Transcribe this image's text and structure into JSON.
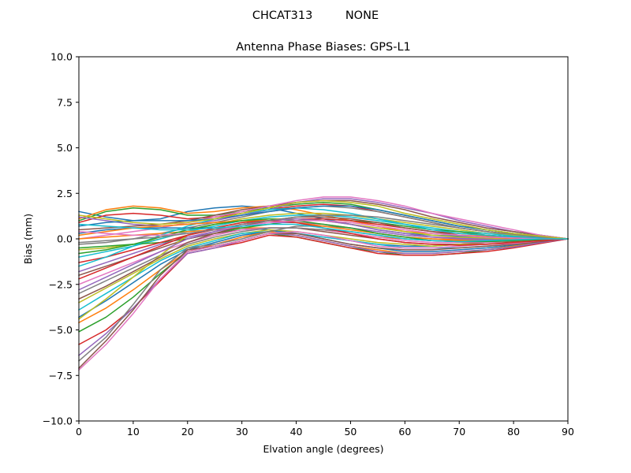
{
  "figure": {
    "suptitle": "CHCAT313         NONE"
  },
  "chart_data": {
    "type": "line",
    "title": "Antenna Phase Biases: GPS-L1",
    "xlabel": "Elvation angle (degrees)",
    "ylabel": "Bias (mm)",
    "xlim": [
      0,
      90
    ],
    "ylim": [
      -10,
      10
    ],
    "xticks": [
      0,
      10,
      20,
      30,
      40,
      50,
      60,
      70,
      80,
      90
    ],
    "yticks": [
      -10.0,
      -7.5,
      -5.0,
      -2.5,
      0.0,
      2.5,
      5.0,
      7.5,
      10.0
    ],
    "xtick_labels": [
      "0",
      "10",
      "20",
      "30",
      "40",
      "50",
      "60",
      "70",
      "80",
      "90"
    ],
    "ytick_labels": [
      "−10.0",
      "−7.5",
      "−5.0",
      "−2.5",
      "0.0",
      "2.5",
      "5.0",
      "7.5",
      "10.0"
    ],
    "grid": false,
    "legend": "none",
    "palette": [
      "#1f77b4",
      "#ff7f0e",
      "#2ca02c",
      "#d62728",
      "#9467bd",
      "#8c564b",
      "#e377c2",
      "#7f7f7f",
      "#bcbd22",
      "#17becf"
    ],
    "x": [
      0,
      5,
      10,
      15,
      20,
      25,
      30,
      35,
      40,
      45,
      50,
      55,
      60,
      65,
      70,
      75,
      80,
      85,
      90
    ],
    "series": [
      {
        "values": [
          1.5,
          1.2,
          1.0,
          1.1,
          1.5,
          1.7,
          1.8,
          1.7,
          1.4,
          1.1,
          0.8,
          0.5,
          0.3,
          0.2,
          0.15,
          0.1,
          0.05,
          0.02,
          0.0
        ]
      },
      {
        "values": [
          1.1,
          1.6,
          1.8,
          1.7,
          1.4,
          1.5,
          1.7,
          1.8,
          1.6,
          1.3,
          1.0,
          0.7,
          0.4,
          0.3,
          0.2,
          0.15,
          0.1,
          0.05,
          0.0
        ]
      },
      {
        "values": [
          1.0,
          1.5,
          1.7,
          1.6,
          1.3,
          1.3,
          1.5,
          1.7,
          1.9,
          2.0,
          1.9,
          1.6,
          1.3,
          1.0,
          0.7,
          0.5,
          0.3,
          0.15,
          0.0
        ]
      },
      {
        "values": [
          0.9,
          1.3,
          1.4,
          1.3,
          1.1,
          1.2,
          1.4,
          1.6,
          1.8,
          1.9,
          1.8,
          1.5,
          1.2,
          0.9,
          0.6,
          0.4,
          0.25,
          0.1,
          0.0
        ]
      },
      {
        "values": [
          1.2,
          1.0,
          0.8,
          0.7,
          0.8,
          1.0,
          1.3,
          1.6,
          2.0,
          2.2,
          2.2,
          2.0,
          1.7,
          1.4,
          1.0,
          0.7,
          0.4,
          0.2,
          0.0
        ]
      },
      {
        "values": [
          0.5,
          0.6,
          0.7,
          0.8,
          1.0,
          1.3,
          1.6,
          1.8,
          2.0,
          2.1,
          2.1,
          1.9,
          1.6,
          1.2,
          0.9,
          0.6,
          0.4,
          0.2,
          0.0
        ]
      },
      {
        "values": [
          0.0,
          0.2,
          0.4,
          0.6,
          0.9,
          1.2,
          1.5,
          1.8,
          2.1,
          2.3,
          2.3,
          2.1,
          1.8,
          1.4,
          1.1,
          0.8,
          0.5,
          0.2,
          0.0
        ]
      },
      {
        "values": [
          -0.3,
          -0.2,
          0.0,
          0.3,
          0.6,
          0.9,
          1.2,
          1.5,
          1.7,
          1.8,
          1.7,
          1.5,
          1.2,
          0.9,
          0.6,
          0.4,
          0.2,
          0.1,
          0.0
        ]
      },
      {
        "values": [
          -0.6,
          -0.5,
          -0.3,
          0.0,
          0.4,
          0.8,
          1.1,
          1.3,
          1.4,
          1.4,
          1.3,
          1.1,
          0.9,
          0.7,
          0.5,
          0.3,
          0.2,
          0.1,
          0.0
        ]
      },
      {
        "values": [
          -1.0,
          -0.7,
          -0.4,
          0.0,
          0.4,
          0.7,
          1.0,
          1.2,
          1.3,
          1.3,
          1.2,
          1.0,
          0.8,
          0.6,
          0.4,
          0.3,
          0.15,
          0.05,
          0.0
        ]
      },
      {
        "values": [
          0.3,
          0.5,
          0.6,
          0.6,
          0.6,
          0.6,
          0.6,
          0.5,
          0.3,
          0.1,
          -0.1,
          -0.3,
          -0.4,
          -0.4,
          -0.3,
          -0.2,
          -0.1,
          -0.05,
          0.0
        ]
      },
      {
        "values": [
          0.0,
          0.1,
          0.2,
          0.3,
          0.4,
          0.5,
          0.6,
          0.6,
          0.6,
          0.5,
          0.3,
          0.1,
          0.0,
          -0.1,
          -0.1,
          -0.1,
          -0.05,
          0.0,
          0.0
        ]
      },
      {
        "values": [
          -0.5,
          -0.4,
          -0.3,
          -0.2,
          0.0,
          0.3,
          0.6,
          0.8,
          1.0,
          1.1,
          1.0,
          0.9,
          0.7,
          0.5,
          0.4,
          0.2,
          0.1,
          0.05,
          0.0
        ]
      },
      {
        "values": [
          -1.3,
          -1.0,
          -0.6,
          -0.2,
          0.2,
          0.5,
          0.8,
          1.0,
          1.1,
          1.1,
          1.0,
          0.8,
          0.6,
          0.4,
          0.3,
          0.2,
          0.1,
          0.05,
          0.0
        ]
      },
      {
        "values": [
          -1.8,
          -1.3,
          -0.8,
          -0.3,
          0.1,
          0.4,
          0.7,
          0.9,
          0.9,
          0.8,
          0.6,
          0.4,
          0.2,
          0.1,
          0.05,
          0.0,
          0.0,
          0.0,
          0.0
        ]
      },
      {
        "values": [
          -2.0,
          -1.5,
          -1.0,
          -0.5,
          0.0,
          0.3,
          0.5,
          0.6,
          0.6,
          0.4,
          0.2,
          0.0,
          -0.2,
          -0.3,
          -0.3,
          -0.2,
          -0.15,
          -0.05,
          0.0
        ]
      },
      {
        "values": [
          -2.5,
          -1.9,
          -1.3,
          -0.7,
          -0.2,
          0.2,
          0.5,
          0.6,
          0.6,
          0.5,
          0.3,
          0.1,
          -0.1,
          -0.2,
          -0.2,
          -0.2,
          -0.1,
          -0.05,
          0.0
        ]
      },
      {
        "values": [
          -3.0,
          -2.3,
          -1.6,
          -0.9,
          -0.3,
          0.1,
          0.4,
          0.6,
          0.6,
          0.5,
          0.4,
          0.2,
          0.0,
          -0.1,
          -0.15,
          -0.1,
          -0.1,
          -0.05,
          0.0
        ]
      },
      {
        "values": [
          -3.5,
          -2.7,
          -1.9,
          -1.1,
          -0.4,
          0.0,
          0.3,
          0.5,
          0.4,
          0.2,
          0.0,
          -0.2,
          -0.3,
          -0.4,
          -0.3,
          -0.3,
          -0.2,
          -0.1,
          0.0
        ]
      },
      {
        "values": [
          -3.9,
          -3.0,
          -2.1,
          -1.2,
          -0.5,
          -0.1,
          0.3,
          0.4,
          0.3,
          0.1,
          -0.1,
          -0.3,
          -0.5,
          -0.5,
          -0.5,
          -0.4,
          -0.3,
          -0.15,
          0.0
        ]
      },
      {
        "values": [
          -4.3,
          -3.4,
          -2.4,
          -1.4,
          -0.6,
          -0.2,
          0.2,
          0.4,
          0.3,
          0.0,
          -0.3,
          -0.5,
          -0.7,
          -0.7,
          -0.6,
          -0.5,
          -0.35,
          -0.2,
          0.0
        ]
      },
      {
        "values": [
          -4.6,
          -3.8,
          -2.8,
          -1.7,
          -0.7,
          -0.3,
          0.1,
          0.4,
          0.2,
          -0.1,
          -0.4,
          -0.6,
          -0.8,
          -0.8,
          -0.7,
          -0.6,
          -0.4,
          -0.2,
          0.0
        ]
      },
      {
        "values": [
          -5.1,
          -4.3,
          -3.2,
          -1.9,
          -0.7,
          -0.4,
          -0.1,
          0.3,
          0.1,
          -0.2,
          -0.5,
          -0.7,
          -0.9,
          -0.9,
          -0.8,
          -0.6,
          -0.45,
          -0.2,
          0.0
        ]
      },
      {
        "values": [
          -5.8,
          -5.0,
          -3.8,
          -2.3,
          -0.8,
          -0.5,
          -0.2,
          0.2,
          0.1,
          -0.2,
          -0.5,
          -0.8,
          -0.9,
          -0.9,
          -0.8,
          -0.7,
          -0.5,
          -0.25,
          0.0
        ]
      },
      {
        "values": [
          -6.4,
          -5.2,
          -3.8,
          -2.2,
          -0.8,
          -0.5,
          -0.1,
          0.3,
          0.2,
          -0.1,
          -0.4,
          -0.7,
          -0.8,
          -0.8,
          -0.7,
          -0.6,
          -0.45,
          -0.2,
          0.0
        ]
      },
      {
        "values": [
          -7.1,
          -5.6,
          -3.9,
          -2.0,
          -0.6,
          -0.4,
          -0.1,
          0.3,
          0.3,
          0.0,
          -0.3,
          -0.5,
          -0.6,
          -0.6,
          -0.5,
          -0.4,
          -0.3,
          -0.15,
          0.0
        ]
      },
      {
        "values": [
          -7.2,
          -5.8,
          -4.1,
          -2.2,
          -0.7,
          -0.4,
          -0.1,
          0.3,
          0.4,
          0.2,
          -0.1,
          -0.4,
          -0.5,
          -0.5,
          -0.4,
          -0.3,
          -0.25,
          -0.1,
          0.0
        ]
      },
      {
        "values": [
          -6.7,
          -5.4,
          -3.6,
          -1.7,
          -0.5,
          -0.3,
          0.0,
          0.4,
          0.7,
          0.7,
          0.6,
          0.3,
          0.1,
          0.0,
          -0.05,
          -0.05,
          0.0,
          0.0,
          0.0
        ]
      },
      {
        "values": [
          -4.4,
          -3.3,
          -2.1,
          -0.9,
          0.2,
          0.6,
          0.9,
          1.1,
          1.1,
          1.0,
          0.8,
          0.6,
          0.4,
          0.2,
          0.1,
          0.05,
          0.0,
          0.0,
          0.0
        ]
      },
      {
        "values": [
          -1.5,
          -1.0,
          -0.4,
          0.2,
          0.7,
          1.1,
          1.4,
          1.6,
          1.7,
          1.6,
          1.4,
          1.1,
          0.8,
          0.5,
          0.3,
          0.2,
          0.1,
          0.05,
          0.0
        ]
      },
      {
        "values": [
          0.7,
          0.9,
          1.0,
          1.0,
          1.0,
          1.1,
          1.3,
          1.5,
          1.7,
          1.8,
          1.8,
          1.6,
          1.3,
          1.0,
          0.7,
          0.5,
          0.3,
          0.15,
          0.0
        ]
      },
      {
        "values": [
          0.2,
          0.4,
          0.6,
          0.7,
          0.8,
          0.9,
          1.0,
          1.0,
          0.9,
          0.7,
          0.5,
          0.3,
          0.1,
          0.0,
          -0.05,
          -0.05,
          0.0,
          0.0,
          0.0
        ]
      },
      {
        "values": [
          -0.8,
          -0.6,
          -0.3,
          0.1,
          0.5,
          0.8,
          1.0,
          1.1,
          1.0,
          0.8,
          0.6,
          0.3,
          0.1,
          -0.1,
          -0.15,
          -0.15,
          -0.1,
          -0.05,
          0.0
        ]
      },
      {
        "values": [
          -2.2,
          -1.6,
          -1.0,
          -0.4,
          0.2,
          0.6,
          0.9,
          1.0,
          0.9,
          0.6,
          0.3,
          0.0,
          -0.2,
          -0.3,
          -0.35,
          -0.3,
          -0.2,
          -0.1,
          0.0
        ]
      },
      {
        "values": [
          -2.8,
          -2.1,
          -1.4,
          -0.7,
          0.0,
          0.4,
          0.8,
          1.0,
          1.1,
          1.0,
          0.8,
          0.5,
          0.3,
          0.1,
          0.0,
          -0.05,
          -0.05,
          0.0,
          0.0
        ]
      },
      {
        "values": [
          -3.3,
          -2.6,
          -1.8,
          -1.0,
          -0.2,
          0.3,
          0.7,
          1.0,
          1.2,
          1.2,
          1.1,
          0.9,
          0.6,
          0.4,
          0.2,
          0.1,
          0.05,
          0.0,
          0.0
        ]
      },
      {
        "values": [
          0.4,
          0.3,
          0.2,
          0.2,
          0.3,
          0.5,
          0.7,
          0.9,
          1.0,
          1.0,
          0.9,
          0.7,
          0.5,
          0.3,
          0.2,
          0.1,
          0.05,
          0.0,
          0.0
        ]
      },
      {
        "values": [
          -0.2,
          -0.1,
          0.0,
          0.1,
          0.3,
          0.5,
          0.8,
          1.0,
          1.2,
          1.3,
          1.3,
          1.2,
          1.0,
          0.8,
          0.6,
          0.4,
          0.25,
          0.1,
          0.0
        ]
      },
      {
        "values": [
          1.3,
          1.1,
          0.9,
          0.8,
          0.9,
          1.1,
          1.4,
          1.7,
          2.0,
          2.1,
          2.0,
          1.8,
          1.4,
          1.1,
          0.8,
          0.5,
          0.3,
          0.15,
          0.0
        ]
      },
      {
        "values": [
          0.8,
          0.7,
          0.6,
          0.5,
          0.5,
          0.6,
          0.7,
          0.8,
          0.8,
          0.6,
          0.4,
          0.2,
          0.0,
          -0.1,
          -0.15,
          -0.1,
          -0.05,
          0.0,
          0.0
        ]
      }
    ]
  }
}
